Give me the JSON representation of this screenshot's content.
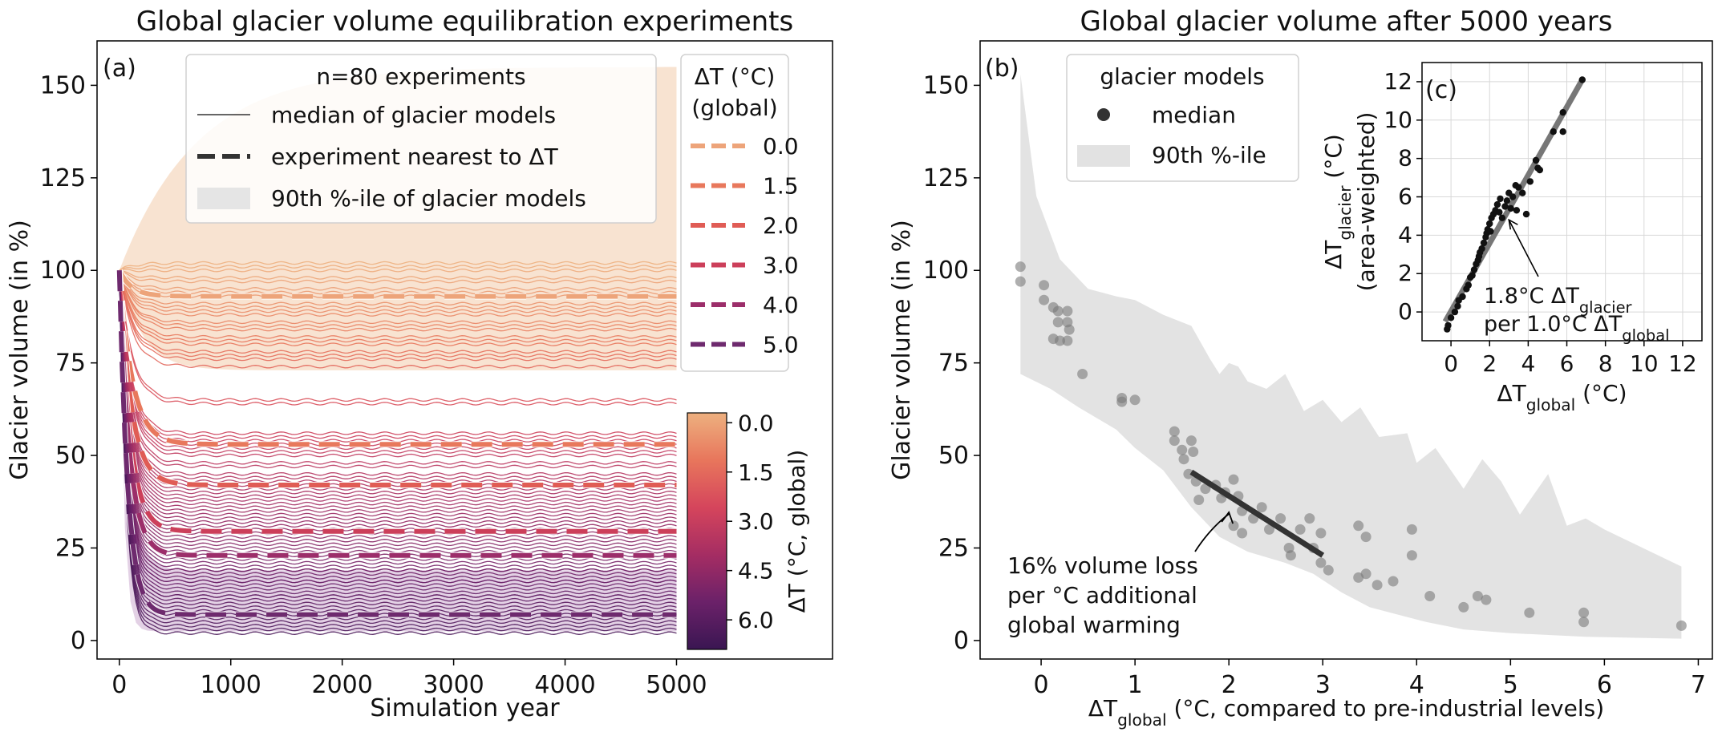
{
  "chart_data": [
    {
      "panel": "(a)",
      "type": "line",
      "title": "Global glacier volume equilibration experiments",
      "xlabel": "Simulation year",
      "ylabel": "Glacier volume (in %)",
      "xlim": [
        -200,
        6400
      ],
      "ylim": [
        -5,
        162
      ],
      "xticks": [
        "0",
        "1000",
        "2000",
        "3000",
        "4000",
        "5000"
      ],
      "yticks": [
        "0",
        "25",
        "50",
        "75",
        "100",
        "125",
        "150"
      ],
      "legend_main": {
        "title": "n=80 experiments",
        "items": [
          "median of glacier models",
          "experiment nearest to ΔT",
          "90th %-ile of glacier models"
        ]
      },
      "legend_dt": {
        "title_line1": "ΔT (°C)",
        "title_line2": "(global)",
        "entries": [
          "0.0",
          "1.5",
          "2.0",
          "3.0",
          "4.0",
          "5.0"
        ],
        "colors": [
          "#eda47a",
          "#e8785c",
          "#e05c55",
          "#cc3f5a",
          "#9c2e6a",
          "#6e2a6e"
        ]
      },
      "colorbar": {
        "label": "ΔT (°C, global)",
        "ticks": [
          "0.0",
          "1.5",
          "3.0",
          "4.5",
          "6.0"
        ],
        "range": [
          -0.3,
          6.9
        ],
        "colors": [
          "#edb07f",
          "#e8765c",
          "#d5455c",
          "#a52d63",
          "#6b2169",
          "#3a1652"
        ]
      },
      "highlighted_series": [
        {
          "dt": "0.0",
          "final": 93,
          "color": "#eda47a"
        },
        {
          "dt": "1.5",
          "final": 53,
          "color": "#e8785c"
        },
        {
          "dt": "2.0",
          "final": 42,
          "color": "#e05c55"
        },
        {
          "dt": "3.0",
          "final": 29.5,
          "color": "#cc3f5a"
        },
        {
          "dt": "4.0",
          "final": 23,
          "color": "#9c2e6a"
        },
        {
          "dt": "5.0",
          "final": 7,
          "color": "#6e2a6e"
        }
      ],
      "median_series_final_volumes": [
        102,
        101,
        100,
        98,
        97,
        95,
        94,
        93,
        91,
        90,
        89,
        88,
        86,
        85,
        84,
        82,
        81,
        80,
        78,
        77,
        76,
        74,
        65,
        64,
        56,
        55,
        54,
        53,
        52,
        51,
        50,
        48,
        47,
        45,
        44,
        43,
        42,
        41,
        40,
        39,
        38,
        37,
        36,
        35,
        34,
        33,
        32,
        31,
        30,
        29,
        28,
        27,
        26,
        25,
        24,
        23,
        22,
        21,
        20,
        19,
        18,
        17,
        16,
        15,
        14,
        13,
        12,
        11,
        10,
        9,
        8,
        7,
        6,
        5,
        4,
        3,
        2,
        12,
        16,
        19
      ],
      "band_upper": [
        [
          0,
          100
        ],
        [
          300,
          118
        ],
        [
          1000,
          138
        ],
        [
          2000,
          148
        ],
        [
          3000,
          152
        ],
        [
          4000,
          154
        ],
        [
          5000,
          155
        ]
      ],
      "band_lower_warm": [
        [
          0,
          100
        ],
        [
          500,
          80
        ],
        [
          1000,
          75
        ],
        [
          5000,
          73
        ]
      ],
      "band_cold_upper": [
        [
          0,
          100
        ],
        [
          300,
          30
        ],
        [
          1000,
          21
        ],
        [
          5000,
          19
        ]
      ],
      "band_cold_lower": [
        [
          0,
          100
        ],
        [
          100,
          40
        ],
        [
          300,
          10
        ],
        [
          1000,
          4
        ],
        [
          5000,
          3
        ]
      ]
    },
    {
      "panel": "(b)",
      "type": "scatter",
      "title": "Global glacier volume after 5000 years",
      "xlabel_prefix": "ΔT",
      "xlabel_sub": "global",
      "xlabel_suffix": " (°C, compared to pre-industrial levels)",
      "ylabel": "Glacier volume (in %)",
      "xlim": [
        -0.65,
        7.15
      ],
      "ylim": [
        -5,
        162
      ],
      "xticks": [
        "0",
        "1",
        "2",
        "3",
        "4",
        "5",
        "6",
        "7"
      ],
      "yticks": [
        "0",
        "25",
        "50",
        "75",
        "100",
        "125",
        "150"
      ],
      "legend": {
        "title": "glacier models",
        "items": [
          "median",
          "90th %-ile"
        ]
      },
      "annotation": {
        "lines": [
          "16% volume loss",
          "per °C additional",
          "global warming"
        ]
      },
      "fit_line": {
        "x": [
          1.6,
          3.0
        ],
        "y": [
          45.5,
          23
        ]
      },
      "points": [
        [
          -0.22,
          101
        ],
        [
          -0.22,
          97
        ],
        [
          0.03,
          96
        ],
        [
          0.03,
          92
        ],
        [
          0.13,
          90
        ],
        [
          0.18,
          89
        ],
        [
          0.28,
          89
        ],
        [
          0.18,
          86
        ],
        [
          0.28,
          86
        ],
        [
          0.3,
          84
        ],
        [
          0.28,
          81
        ],
        [
          0.13,
          81.5
        ],
        [
          0.2,
          81
        ],
        [
          0.44,
          72
        ],
        [
          0.86,
          65.5
        ],
        [
          0.86,
          64.5
        ],
        [
          1.0,
          65
        ],
        [
          1.42,
          56.5
        ],
        [
          1.42,
          54
        ],
        [
          1.5,
          51.5
        ],
        [
          1.52,
          49
        ],
        [
          1.6,
          54
        ],
        [
          1.62,
          51
        ],
        [
          1.57,
          45
        ],
        [
          1.65,
          43
        ],
        [
          1.68,
          38
        ],
        [
          1.75,
          41
        ],
        [
          1.86,
          42
        ],
        [
          1.92,
          38.5
        ],
        [
          1.96,
          40
        ],
        [
          2.05,
          43.5
        ],
        [
          2.1,
          39
        ],
        [
          2.14,
          35
        ],
        [
          2.05,
          31
        ],
        [
          2.14,
          29
        ],
        [
          2.26,
          33
        ],
        [
          2.35,
          36
        ],
        [
          2.43,
          30
        ],
        [
          2.55,
          33
        ],
        [
          2.64,
          25
        ],
        [
          2.66,
          23
        ],
        [
          2.76,
          30
        ],
        [
          2.86,
          33
        ],
        [
          2.9,
          25
        ],
        [
          2.98,
          29
        ],
        [
          2.98,
          21
        ],
        [
          3.06,
          19
        ],
        [
          3.38,
          31
        ],
        [
          3.46,
          28
        ],
        [
          3.46,
          18
        ],
        [
          3.38,
          17
        ],
        [
          3.58,
          15
        ],
        [
          3.75,
          16
        ],
        [
          3.95,
          30
        ],
        [
          3.95,
          23
        ],
        [
          4.14,
          12
        ],
        [
          4.5,
          9
        ],
        [
          4.65,
          12
        ],
        [
          4.74,
          11
        ],
        [
          5.2,
          7.5
        ],
        [
          5.78,
          7.5
        ],
        [
          5.78,
          5
        ],
        [
          6.82,
          4
        ]
      ],
      "band_upper": [
        [
          -0.22,
          153
        ],
        [
          -0.05,
          120
        ],
        [
          0.2,
          103
        ],
        [
          0.5,
          95
        ],
        [
          0.8,
          93
        ],
        [
          1.0,
          92
        ],
        [
          1.3,
          88
        ],
        [
          1.6,
          85
        ],
        [
          1.8,
          76
        ],
        [
          1.9,
          72
        ],
        [
          2.0,
          75
        ],
        [
          2.1,
          74
        ],
        [
          2.2,
          70
        ],
        [
          2.4,
          68
        ],
        [
          2.6,
          72
        ],
        [
          2.8,
          62
        ],
        [
          3.0,
          65
        ],
        [
          3.2,
          59
        ],
        [
          3.4,
          63
        ],
        [
          3.6,
          55
        ],
        [
          3.9,
          56
        ],
        [
          4.0,
          48
        ],
        [
          4.2,
          52
        ],
        [
          4.5,
          41
        ],
        [
          4.7,
          49
        ],
        [
          4.9,
          43
        ],
        [
          5.1,
          34
        ],
        [
          5.4,
          45
        ],
        [
          5.6,
          31
        ],
        [
          5.8,
          33
        ],
        [
          6.0,
          30
        ],
        [
          6.82,
          20
        ]
      ],
      "band_lower": [
        [
          -0.22,
          72
        ],
        [
          0.1,
          68
        ],
        [
          0.4,
          63
        ],
        [
          0.8,
          57
        ],
        [
          1.0,
          52
        ],
        [
          1.3,
          46
        ],
        [
          1.6,
          36
        ],
        [
          1.9,
          28
        ],
        [
          2.2,
          24
        ],
        [
          2.6,
          21
        ],
        [
          2.9,
          18
        ],
        [
          3.2,
          13
        ],
        [
          3.5,
          9
        ],
        [
          3.8,
          7
        ],
        [
          4.1,
          5
        ],
        [
          4.5,
          3
        ],
        [
          5.0,
          2
        ],
        [
          5.8,
          1
        ],
        [
          6.82,
          0.5
        ]
      ]
    },
    {
      "panel": "(c)",
      "type": "scatter",
      "xlabel_prefix": "ΔT",
      "xlabel_sub": "global",
      "xlabel_suffix": " (°C)",
      "ylabel_prefix": "ΔT",
      "ylabel_sub": "glacier",
      "ylabel_suffix": " (°C)",
      "ylabel_line2": "(area-weighted)",
      "xlim": [
        -1.5,
        13
      ],
      "ylim": [
        -1.5,
        13
      ],
      "xticks": [
        "0",
        "2",
        "4",
        "6",
        "8",
        "10",
        "12"
      ],
      "yticks": [
        "0",
        "2",
        "4",
        "6",
        "8",
        "10",
        "12"
      ],
      "annotation": {
        "line1_prefix": "1.8°C ΔT",
        "line1_sub": "glacier",
        "line2_prefix": "per 1.0°C ΔT",
        "line2_sub": "global"
      },
      "fit_line": {
        "x": [
          -0.3,
          6.8
        ],
        "y": [
          -0.5,
          12.1
        ]
      },
      "points": [
        [
          -0.2,
          -0.9
        ],
        [
          -0.15,
          -0.7
        ],
        [
          0.0,
          -0.3
        ],
        [
          0.2,
          0.0
        ],
        [
          0.35,
          0.3
        ],
        [
          0.4,
          0.6
        ],
        [
          0.6,
          0.8
        ],
        [
          0.8,
          1.2
        ],
        [
          0.9,
          1.4
        ],
        [
          1.0,
          1.8
        ],
        [
          1.1,
          1.9
        ],
        [
          1.2,
          2.2
        ],
        [
          1.3,
          2.5
        ],
        [
          1.4,
          2.7
        ],
        [
          1.45,
          2.9
        ],
        [
          1.5,
          3.1
        ],
        [
          1.6,
          3.3
        ],
        [
          1.7,
          3.6
        ],
        [
          1.8,
          3.9
        ],
        [
          1.85,
          4.1
        ],
        [
          1.9,
          4.3
        ],
        [
          2.0,
          4.6
        ],
        [
          2.05,
          4.2
        ],
        [
          2.1,
          4.9
        ],
        [
          2.2,
          5.1
        ],
        [
          2.3,
          5.3
        ],
        [
          2.4,
          5.6
        ],
        [
          2.5,
          5.2
        ],
        [
          2.55,
          5.9
        ],
        [
          2.65,
          4.9
        ],
        [
          2.8,
          5.5
        ],
        [
          2.9,
          5.8
        ],
        [
          3.0,
          6.2
        ],
        [
          3.1,
          5.4
        ],
        [
          3.2,
          6.0
        ],
        [
          3.35,
          6.6
        ],
        [
          3.4,
          5.3
        ],
        [
          3.5,
          6.5
        ],
        [
          3.7,
          6.2
        ],
        [
          3.9,
          5.1
        ],
        [
          4.1,
          6.8
        ],
        [
          4.5,
          7.5
        ],
        [
          4.6,
          7.4
        ],
        [
          4.4,
          7.9
        ],
        [
          5.3,
          9.4
        ],
        [
          5.8,
          9.4
        ],
        [
          5.8,
          10.4
        ],
        [
          6.8,
          12.1
        ]
      ]
    }
  ]
}
